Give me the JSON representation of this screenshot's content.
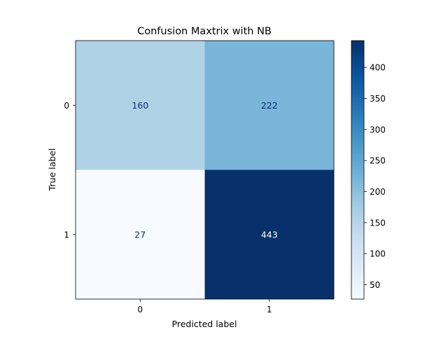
{
  "chart_data": {
    "type": "heatmap",
    "title": "Confusion Maxtrix with NB",
    "xlabel": "Predicted label",
    "ylabel": "True label",
    "x_categories": [
      "0",
      "1"
    ],
    "y_categories": [
      "0",
      "1"
    ],
    "values": [
      [
        160,
        222
      ],
      [
        27,
        443
      ]
    ],
    "colormap": "Blues",
    "colorbar": {
      "min": 27,
      "max": 443,
      "ticks": [
        50,
        100,
        150,
        200,
        250,
        300,
        350,
        400
      ]
    },
    "grid": false
  }
}
